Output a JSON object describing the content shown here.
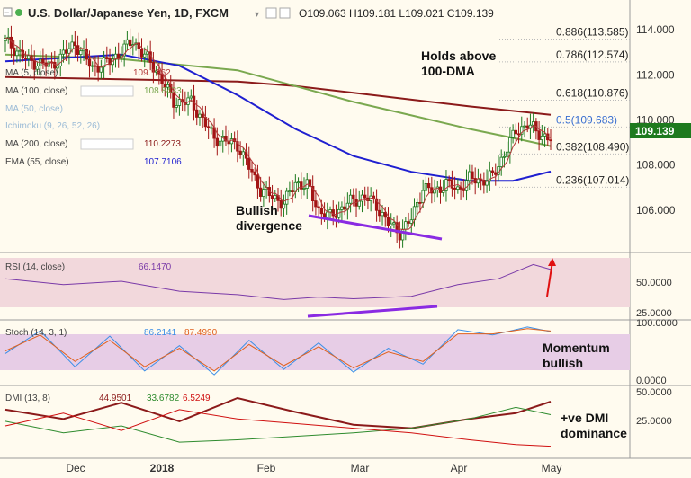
{
  "header": {
    "symbol_title": "U.S. Dollar/Japanese Yen, 1D, FXCM",
    "ohlc": "O109.063  H109.181  L109.021  C109.139"
  },
  "indicator_labels": [
    {
      "label": "MA (5, close)",
      "value": "109.1362",
      "color": "#b33a3a"
    },
    {
      "label": "MA (100, close)",
      "value": "108.8433",
      "color": "#7aa84f"
    },
    {
      "label": "MA (50, close)",
      "value": "",
      "color": "#9bbbd6"
    },
    {
      "label": "Ichimoku (9, 26, 52, 26)",
      "value": "",
      "color": "#9bbbd6"
    },
    {
      "label": "MA (200, close)",
      "value": "110.2273",
      "color": "#8b1a1a"
    },
    {
      "label": "EMA (55, close)",
      "value": "107.7106",
      "color": "#1f1fd0"
    }
  ],
  "annotations": {
    "dma_note": [
      "Holds above",
      "100-DMA"
    ],
    "divergence_note": [
      "Bullish",
      "divergence"
    ],
    "momentum_note": [
      "Momentum",
      "bullish"
    ],
    "dmi_note": [
      "+ve DMI",
      "dominance"
    ]
  },
  "fib_levels": [
    {
      "label": "0.886(113.585)",
      "value": 113.585
    },
    {
      "label": "0.786(112.574)",
      "value": 112.574
    },
    {
      "label": "0.618(110.876)",
      "value": 110.876
    },
    {
      "label": "0.5(109.683)",
      "value": 109.683
    },
    {
      "label": "0.382(108.490)",
      "value": 108.49
    },
    {
      "label": "0.236(107.014)",
      "value": 107.014
    }
  ],
  "price_tag": "109.139",
  "panels": {
    "rsi": {
      "label": "RSI (14, close)",
      "value": "66.1470",
      "ticks": [
        "50.0000",
        "25.0000"
      ]
    },
    "stoch": {
      "label": "Stoch (14, 3, 1)",
      "values": [
        "86.2141",
        "87.4990"
      ],
      "ticks": [
        "100.0000",
        "0.0000"
      ]
    },
    "dmi": {
      "label": "DMI (13, 8)",
      "values": [
        "44.9501",
        "33.6782",
        "6.5249"
      ],
      "ticks": [
        "50.0000",
        "25.0000"
      ]
    }
  },
  "colors": {
    "background": "#fffbef",
    "candle_up": "#1e7a1e",
    "candle_down": "#a31515",
    "ma5": "#b33a3a",
    "ma100": "#7aa84f",
    "ma200": "#8b1a1a",
    "ema55": "#1f1fd0",
    "divergence": "#8a2be2",
    "band": "#f2d8dc",
    "stoch_band": "#e7cde6",
    "stoch_k": "#3a8ee6",
    "stoch_d": "#e0601c",
    "dmi_adx": "#8b1a1a",
    "dmi_plus": "#2e8b2e",
    "dmi_minus": "#d01010",
    "arrow": "#e01010"
  },
  "chart_data": {
    "type": "line",
    "instrument": "U.S. Dollar/Japanese Yen",
    "timeframe": "1D",
    "x_labels": [
      "Dec",
      "2018",
      "Feb",
      "Mar",
      "Apr",
      "May"
    ],
    "price_axis_ticks": [
      114,
      112,
      110,
      108,
      106
    ],
    "price_range": [
      104.6,
      114.6
    ],
    "series": [
      {
        "name": "Price (close)",
        "x": [
          0,
          8,
          16,
          24,
          30,
          36,
          44,
          52,
          58,
          64,
          72,
          80,
          88,
          96,
          100,
          104,
          108,
          112,
          118,
          124,
          128,
          132,
          136,
          140,
          144,
          148,
          152,
          156,
          160,
          164,
          168,
          172,
          176,
          180,
          184,
          188
        ],
        "values": [
          113.5,
          112.6,
          112.4,
          113.4,
          112.3,
          112.6,
          113.5,
          112.2,
          110.8,
          110.8,
          109.2,
          108.9,
          106.9,
          106.3,
          107.2,
          107.1,
          106.0,
          105.7,
          106.3,
          106.6,
          106.2,
          105.4,
          105.0,
          105.6,
          107.0,
          106.8,
          107.2,
          106.9,
          107.4,
          107.3,
          107.5,
          108.5,
          109.5,
          109.8,
          109.4,
          109.14
        ]
      },
      {
        "name": "MA (100, close)",
        "x": [
          0,
          40,
          80,
          100,
          120,
          140,
          160,
          175,
          188
        ],
        "values": [
          112.9,
          112.7,
          112.2,
          111.5,
          110.8,
          110.2,
          109.6,
          109.2,
          108.84
        ]
      },
      {
        "name": "MA (200, close)",
        "x": [
          0,
          40,
          80,
          100,
          120,
          140,
          160,
          175,
          188
        ],
        "values": [
          111.9,
          111.8,
          111.7,
          111.5,
          111.2,
          110.9,
          110.6,
          110.4,
          110.23
        ]
      },
      {
        "name": "EMA (55, close)",
        "x": [
          0,
          40,
          60,
          80,
          100,
          120,
          140,
          160,
          175,
          188
        ],
        "values": [
          112.6,
          112.9,
          112.4,
          111.1,
          109.6,
          108.4,
          107.7,
          107.3,
          107.3,
          107.71
        ]
      }
    ],
    "rsi": {
      "range": [
        10,
        80
      ],
      "ticks": [
        50,
        25
      ],
      "x": [
        0,
        20,
        40,
        60,
        80,
        96,
        108,
        120,
        140,
        156,
        170,
        182,
        188
      ],
      "values": [
        55,
        48,
        52,
        40,
        36,
        30,
        33,
        31,
        34,
        48,
        55,
        72,
        66.147
      ]
    },
    "stoch": {
      "range": [
        0,
        100
      ],
      "ticks": [
        100,
        0
      ],
      "k": {
        "x": [
          0,
          12,
          24,
          36,
          48,
          60,
          72,
          84,
          96,
          108,
          120,
          132,
          144,
          156,
          168,
          180,
          188
        ],
        "values": [
          45,
          88,
          20,
          78,
          12,
          60,
          5,
          70,
          15,
          65,
          10,
          55,
          25,
          90,
          80,
          95,
          86.2141
        ]
      },
      "d": {
        "x": [
          0,
          12,
          24,
          36,
          48,
          60,
          72,
          84,
          96,
          108,
          120,
          132,
          144,
          156,
          168,
          180,
          188
        ],
        "values": [
          50,
          80,
          30,
          70,
          20,
          55,
          12,
          62,
          22,
          58,
          18,
          48,
          30,
          82,
          82,
          92,
          87.499
        ]
      }
    },
    "dmi": {
      "range": [
        0,
        55
      ],
      "ticks": [
        50,
        25
      ],
      "adx": {
        "x": [
          0,
          20,
          40,
          60,
          80,
          100,
          120,
          140,
          160,
          176,
          188
        ],
        "values": [
          38,
          30,
          44,
          28,
          48,
          36,
          25,
          22,
          30,
          35,
          44.9501
        ]
      },
      "plus_di": {
        "x": [
          0,
          20,
          40,
          60,
          80,
          100,
          120,
          140,
          160,
          176,
          188
        ],
        "values": [
          28,
          18,
          24,
          10,
          12,
          15,
          18,
          22,
          30,
          40,
          33.6782
        ]
      },
      "minus_di": {
        "x": [
          0,
          20,
          40,
          60,
          80,
          100,
          120,
          140,
          160,
          176,
          188
        ],
        "values": [
          24,
          35,
          20,
          38,
          30,
          26,
          22,
          18,
          12,
          8,
          6.5249
        ]
      }
    }
  }
}
